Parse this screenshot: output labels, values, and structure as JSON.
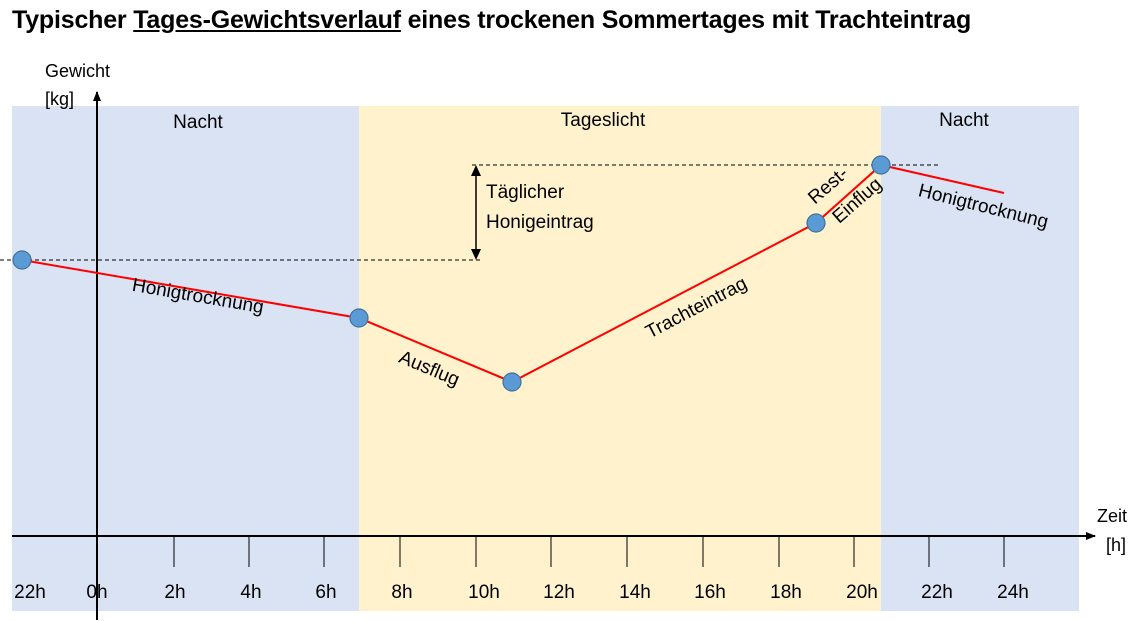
{
  "title": {
    "prefix": "Typischer ",
    "underlined": "Tages-Gewichtsverlauf",
    "suffix": " eines trockenen Sommertages mit Trachteintrag"
  },
  "y_axis": {
    "label_line1": "Gewicht",
    "label_line2": "[kg]"
  },
  "x_axis": {
    "label_line1": "Zeit",
    "label_line2": "[h]",
    "ticks": [
      "22h",
      "0h",
      "2h",
      "4h",
      "6h",
      "8h",
      "10h",
      "12h",
      "14h",
      "16h",
      "18h",
      "20h",
      "22h",
      "24h"
    ]
  },
  "regions": [
    {
      "label": "Nacht",
      "color": "#dae3f3"
    },
    {
      "label": "Tageslicht",
      "color": "#fff2cc"
    },
    {
      "label": "Nacht",
      "color": "#dae3f3"
    }
  ],
  "segments": [
    {
      "label": "Honigtrocknung"
    },
    {
      "label": "Ausflug"
    },
    {
      "label": "Trachteintrag"
    },
    {
      "label_line1": "Rest-",
      "label_line2": "Einflug"
    },
    {
      "label": "Honigtrocknung"
    }
  ],
  "annotation": {
    "line1": "Täglicher",
    "line2": "Honigeintrag"
  },
  "colors": {
    "line": "#ff0000",
    "point_fill": "#5b9bd5",
    "point_stroke": "#41719c",
    "axis": "#000000"
  }
}
